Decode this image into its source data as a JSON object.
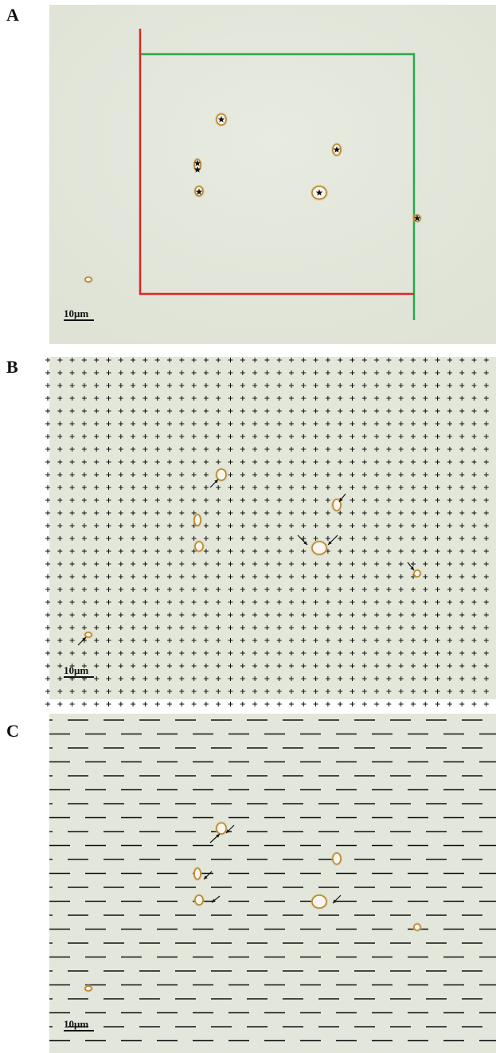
{
  "panels": [
    {
      "id": "A",
      "letter": "A",
      "scale_label": "10μm"
    },
    {
      "id": "B",
      "letter": "B",
      "scale_label": "10μm"
    },
    {
      "id": "C",
      "letter": "C",
      "scale_label": "10μm"
    }
  ],
  "colors": {
    "background": "#e4e8dc",
    "frame_inclusion": "#2aa84a",
    "frame_exclusion": "#e02424",
    "particle_ring": "#b8862e",
    "markers": "#111111"
  },
  "icons": [
    "star-icon",
    "arrow-icon",
    "cross-icon"
  ]
}
